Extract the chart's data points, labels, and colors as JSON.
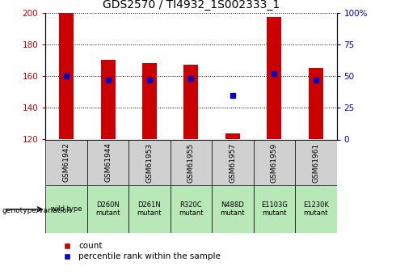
{
  "title": "GDS2570 / TI4932_1S002333_1",
  "samples": [
    "GSM61942",
    "GSM61944",
    "GSM61953",
    "GSM61955",
    "GSM61957",
    "GSM61959",
    "GSM61961"
  ],
  "genotypes": [
    "wild type",
    "D260N\nmutant",
    "D261N\nmutant",
    "R320C\nmutant",
    "N488D\nmutant",
    "E1103G\nmutant",
    "E1230K\nmutant"
  ],
  "counts": [
    200,
    170,
    168,
    167,
    124,
    197,
    165
  ],
  "percentile_ranks": [
    50,
    47,
    47,
    48,
    35,
    52,
    47
  ],
  "ylim_left": [
    120,
    200
  ],
  "ylim_right": [
    0,
    100
  ],
  "bar_color": "#cc0000",
  "dot_color": "#0000cc",
  "bar_width": 0.35,
  "bg_color_sample": "#d0d0d0",
  "bg_color_genotype": "#b8e8b8",
  "title_fontsize": 10,
  "tick_fontsize": 7.5,
  "ytick_left": [
    120,
    140,
    160,
    180,
    200
  ],
  "ytick_right": [
    0,
    25,
    50,
    75,
    100
  ],
  "ytick_right_labels": [
    "0",
    "25",
    "50",
    "75",
    "100%"
  ],
  "legend_fontsize": 7.5,
  "marker_size": 5
}
